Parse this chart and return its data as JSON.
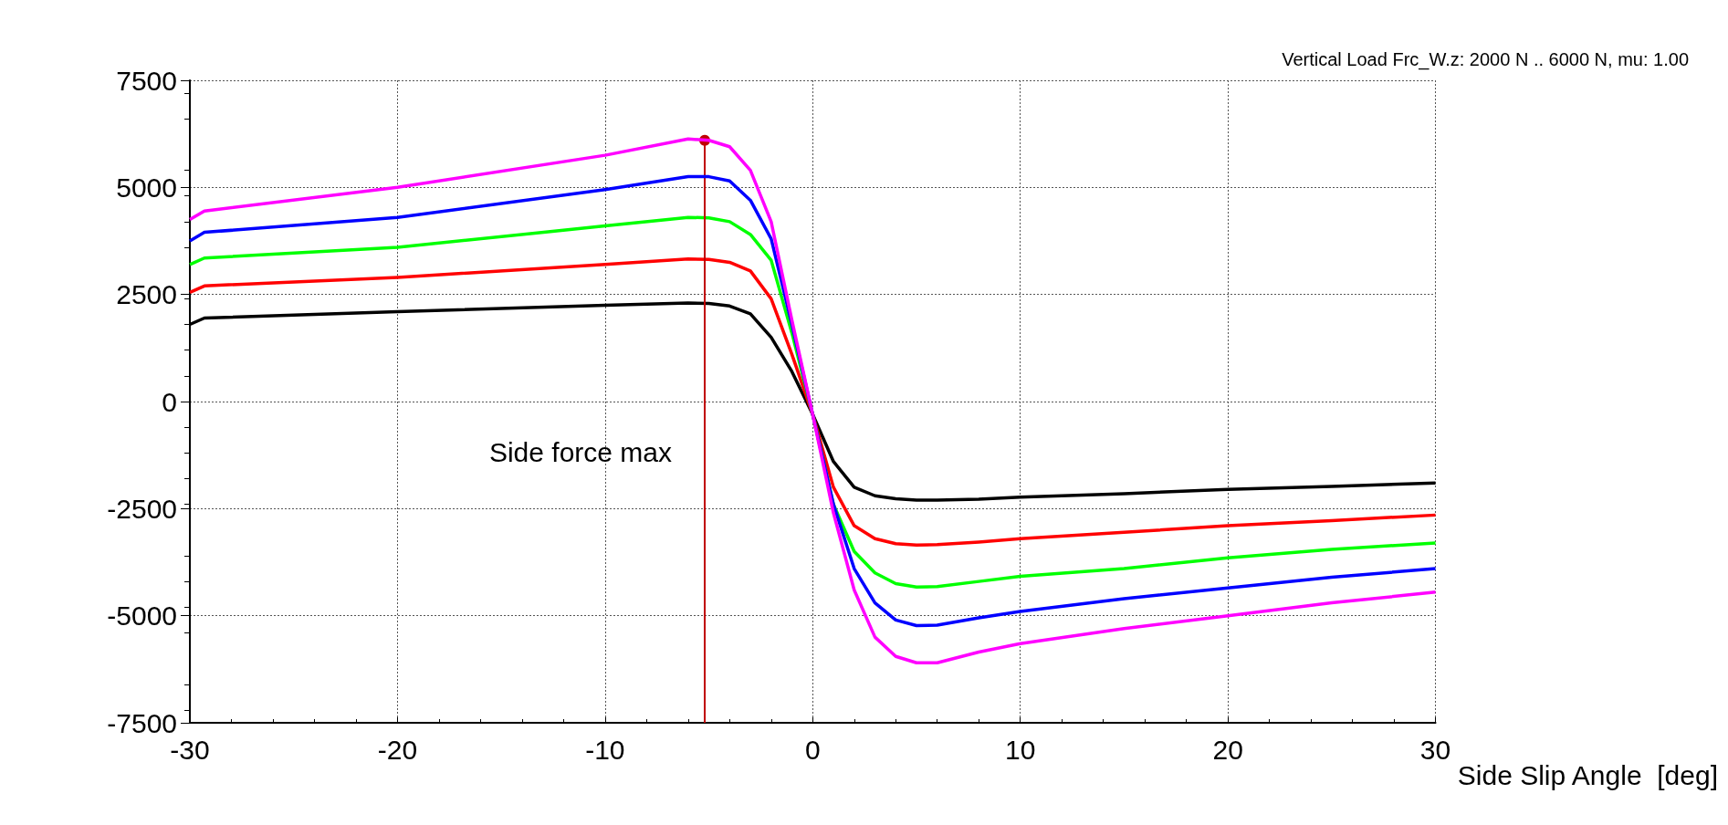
{
  "chart_data": {
    "type": "line",
    "title": "Vertical Load Frc_W.z: 2000 N .. 6000 N, mu: 1.00",
    "xlabel": "Side Slip Angle  [deg]",
    "x": [
      -30,
      -29.3,
      -20,
      -10,
      -6,
      -5,
      -4,
      -3,
      -2,
      -1,
      0,
      1,
      2,
      3,
      4,
      5,
      6,
      8,
      10,
      15,
      20,
      25,
      30
    ],
    "series": [
      {
        "color": "#000000",
        "values": [
          1800,
          1950,
          2100,
          2250,
          2300,
          2290,
          2230,
          2050,
          1500,
          700,
          -300,
          -1400,
          -2000,
          -2200,
          -2270,
          -2300,
          -2300,
          -2280,
          -2230,
          -2150,
          -2050,
          -1980,
          -1900
        ]
      },
      {
        "color": "#ff0000",
        "values": [
          2550,
          2700,
          2900,
          3200,
          3330,
          3320,
          3250,
          3050,
          2400,
          1100,
          -300,
          -2000,
          -2900,
          -3200,
          -3320,
          -3350,
          -3340,
          -3280,
          -3200,
          -3050,
          -2900,
          -2780,
          -2650
        ]
      },
      {
        "color": "#00ff00",
        "values": [
          3200,
          3350,
          3600,
          4100,
          4300,
          4290,
          4200,
          3900,
          3300,
          1600,
          -300,
          -2400,
          -3500,
          -4000,
          -4250,
          -4330,
          -4320,
          -4200,
          -4080,
          -3900,
          -3650,
          -3450,
          -3300
        ]
      },
      {
        "color": "#0000ff",
        "values": [
          3750,
          3950,
          4300,
          4950,
          5250,
          5250,
          5150,
          4700,
          3800,
          1800,
          -300,
          -2400,
          -3900,
          -4700,
          -5100,
          -5230,
          -5220,
          -5050,
          -4900,
          -4600,
          -4350,
          -4100,
          -3900
        ]
      },
      {
        "color": "#ff00ff",
        "values": [
          4250,
          4450,
          5000,
          5750,
          6130,
          6100,
          5950,
          5400,
          4200,
          1900,
          -300,
          -2600,
          -4400,
          -5500,
          -5950,
          -6100,
          -6100,
          -5850,
          -5650,
          -5300,
          -5000,
          -4700,
          -4450
        ]
      }
    ],
    "xlim": [
      -30,
      30
    ],
    "xticks": [
      -30,
      -20,
      -10,
      0,
      10,
      20,
      30
    ],
    "ylim": [
      -7500,
      7500
    ],
    "yticks": [
      -7500,
      -5000,
      -2500,
      0,
      2500,
      5000,
      7500
    ],
    "grid": true,
    "ref_lines": [
      {
        "axis": "x",
        "value": -5.2,
        "label": "Side force max",
        "color": "#c00000"
      }
    ]
  }
}
